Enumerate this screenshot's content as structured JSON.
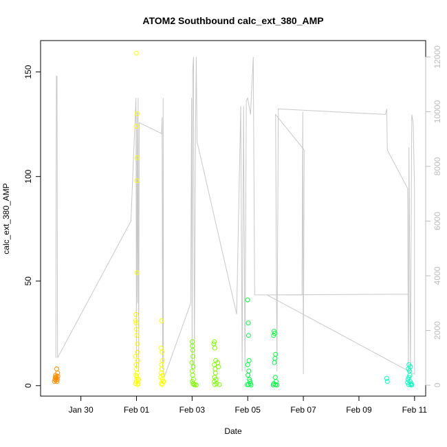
{
  "chart_data": {
    "type": "scatter",
    "title": "ATOM2 Southbound calc_ext_380_AMP",
    "xlabel": "Date",
    "ylabel": "calc_ext_380_AMP",
    "x_ticks": [
      "Jan 30",
      "Feb 01",
      "Feb 03",
      "Feb 05",
      "Feb 07",
      "Feb 09",
      "Feb 11"
    ],
    "x_tick_days": [
      0,
      2,
      4,
      6,
      8,
      10,
      12
    ],
    "xlim_days": [
      -1.45,
      12.4
    ],
    "ylim": [
      -5,
      165
    ],
    "y_ticks": [
      0,
      50,
      100,
      150
    ],
    "y2lim": [
      -400,
      12600
    ],
    "y2_ticks": [
      0,
      2000,
      4000,
      6000,
      8000,
      10000,
      12000
    ],
    "y2_color": "#bdbdbd",
    "grid": false,
    "legend": "none",
    "scatter_series": [
      {
        "color": "#ff8c00",
        "points": [
          [
            -0.95,
            2
          ],
          [
            -0.93,
            3
          ],
          [
            -0.92,
            4
          ],
          [
            -0.91,
            5
          ],
          [
            -0.9,
            2.5
          ],
          [
            -0.89,
            3.5
          ],
          [
            -0.88,
            4.2
          ],
          [
            -0.87,
            8
          ],
          [
            -0.86,
            2
          ],
          [
            -0.85,
            3
          ],
          [
            -0.84,
            6
          ],
          [
            -0.83,
            4.5
          ]
        ]
      },
      {
        "color": "#ffff00",
        "points": [
          [
            2.0,
            159
          ],
          [
            2.03,
            130
          ],
          [
            2.0,
            124
          ],
          [
            2.02,
            109
          ],
          [
            2.01,
            98
          ],
          [
            2.02,
            54
          ],
          [
            1.98,
            34
          ],
          [
            1.97,
            31
          ],
          [
            1.99,
            30
          ],
          [
            2.0,
            27
          ],
          [
            2.01,
            24
          ],
          [
            2.03,
            20
          ],
          [
            2.04,
            16
          ],
          [
            1.96,
            14
          ],
          [
            2.05,
            12
          ],
          [
            1.99,
            10
          ],
          [
            2.0,
            8
          ],
          [
            2.02,
            6
          ],
          [
            1.98,
            5
          ],
          [
            2.01,
            4
          ],
          [
            2.03,
            3
          ],
          [
            2.0,
            2
          ],
          [
            1.97,
            1
          ],
          [
            2.04,
            0.5
          ],
          [
            2.06,
            1
          ],
          [
            2.08,
            3
          ],
          [
            2.9,
            31
          ],
          [
            2.88,
            18
          ],
          [
            2.92,
            16
          ],
          [
            2.94,
            12
          ],
          [
            2.9,
            10
          ],
          [
            2.91,
            8
          ],
          [
            2.89,
            6
          ],
          [
            2.95,
            5
          ],
          [
            2.87,
            4
          ],
          [
            2.93,
            3
          ],
          [
            2.96,
            2
          ],
          [
            2.9,
            1
          ],
          [
            2.92,
            0.5
          ],
          [
            2.98,
            2
          ]
        ]
      },
      {
        "color": "#7fff00",
        "points": [
          [
            4.0,
            21
          ],
          [
            4.01,
            19
          ],
          [
            4.02,
            17
          ],
          [
            4.03,
            14
          ],
          [
            3.99,
            11
          ],
          [
            4.04,
            9
          ],
          [
            4.0,
            7
          ],
          [
            4.02,
            5
          ],
          [
            4.05,
            3
          ],
          [
            4.01,
            2
          ],
          [
            4.03,
            1
          ],
          [
            4.06,
            0.5
          ],
          [
            4.1,
            0.5
          ],
          [
            4.15,
            0.3
          ],
          [
            4.8,
            21
          ],
          [
            4.78,
            20
          ],
          [
            4.82,
            18
          ],
          [
            4.85,
            12
          ],
          [
            4.8,
            10
          ],
          [
            4.83,
            8
          ],
          [
            4.84,
            6
          ],
          [
            4.81,
            4
          ],
          [
            4.86,
            3
          ],
          [
            4.8,
            2
          ],
          [
            4.88,
            1
          ],
          [
            4.82,
            0.5
          ],
          [
            4.95,
            9
          ],
          [
            4.92,
            11
          ],
          [
            4.98,
            0.5
          ]
        ]
      },
      {
        "color": "#00ff40",
        "points": [
          [
            6.0,
            41
          ],
          [
            6.02,
            30
          ],
          [
            6.03,
            24
          ],
          [
            6.05,
            12
          ],
          [
            6.0,
            10
          ],
          [
            6.04,
            7
          ],
          [
            6.01,
            5
          ],
          [
            6.06,
            3
          ],
          [
            6.08,
            2
          ],
          [
            6.1,
            1
          ],
          [
            6.03,
            0.5
          ],
          [
            6.12,
            0.3
          ],
          [
            5.98,
            0.5
          ],
          [
            6.95,
            26
          ],
          [
            6.97,
            25
          ],
          [
            6.93,
            24
          ],
          [
            7.0,
            15
          ],
          [
            6.98,
            13
          ],
          [
            6.96,
            11
          ],
          [
            6.99,
            4
          ],
          [
            7.02,
            2
          ],
          [
            6.94,
            1
          ],
          [
            7.0,
            0.5
          ],
          [
            7.05,
            0.3
          ],
          [
            6.92,
            0.3
          ]
        ]
      },
      {
        "color": "#00ffc0",
        "points": [
          [
            11.0,
            3.5
          ],
          [
            11.02,
            2
          ],
          [
            11.8,
            10
          ],
          [
            11.85,
            9
          ],
          [
            11.78,
            8
          ],
          [
            11.82,
            7
          ],
          [
            11.83,
            5
          ],
          [
            11.8,
            4
          ],
          [
            11.76,
            3
          ],
          [
            11.84,
            2
          ],
          [
            11.88,
            1
          ],
          [
            11.79,
            0.5
          ],
          [
            11.9,
            0.3
          ],
          [
            11.86,
            0.5
          ],
          [
            11.75,
            1.5
          ]
        ]
      }
    ],
    "secondary_line": {
      "axis": "right",
      "color": "#c8c8c8",
      "points": [
        [
          -0.9,
          1000
        ],
        [
          -0.88,
          11300
        ],
        [
          -0.86,
          11300
        ],
        [
          -0.84,
          1000
        ],
        [
          1.8,
          6000
        ],
        [
          1.98,
          10500
        ],
        [
          2.0,
          600
        ],
        [
          2.02,
          10000
        ],
        [
          2.04,
          3000
        ],
        [
          2.06,
          10500
        ],
        [
          2.08,
          500
        ],
        [
          2.1,
          9600
        ],
        [
          2.9,
          9200
        ],
        [
          2.92,
          9800
        ],
        [
          2.94,
          600
        ],
        [
          2.96,
          10500
        ],
        [
          2.97,
          500
        ],
        [
          3.0,
          300
        ],
        [
          3.95,
          3000
        ],
        [
          3.98,
          10500
        ],
        [
          4.0,
          500
        ],
        [
          4.02,
          11500
        ],
        [
          4.05,
          12000
        ],
        [
          4.08,
          600
        ],
        [
          4.12,
          8800
        ],
        [
          4.15,
          12000
        ],
        [
          4.18,
          8900
        ],
        [
          5.6,
          2600
        ],
        [
          5.75,
          10200
        ],
        [
          5.8,
          500
        ],
        [
          5.85,
          10200
        ],
        [
          5.9,
          500
        ],
        [
          5.95,
          10400
        ],
        [
          6.0,
          10500
        ],
        [
          6.1,
          9900
        ],
        [
          6.2,
          12000
        ],
        [
          6.25,
          3300
        ],
        [
          7.95,
          3300
        ],
        [
          7.98,
          10000
        ],
        [
          8.0,
          400
        ],
        [
          8.03,
          8600
        ],
        [
          7.0,
          9900
        ],
        [
          7.05,
          500
        ],
        [
          7.1,
          10100
        ],
        [
          10.95,
          9900
        ],
        [
          11.0,
          10100
        ],
        [
          11.02,
          8600
        ],
        [
          11.75,
          7200
        ],
        [
          11.78,
          400
        ],
        [
          11.8,
          8700
        ],
        [
          11.85,
          500
        ],
        [
          11.9,
          9900
        ],
        [
          11.95,
          9600
        ],
        [
          12.0,
          7200
        ],
        [
          12.0,
          400
        ],
        [
          6.7,
          3300
        ],
        [
          11.78,
          3330
        ]
      ]
    }
  }
}
